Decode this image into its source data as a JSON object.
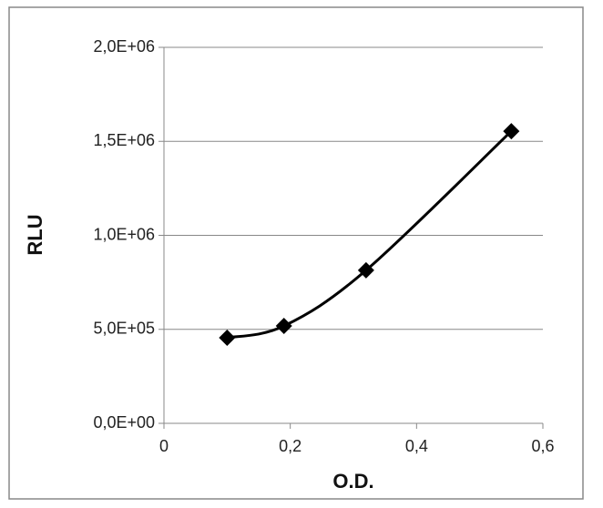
{
  "chart_data": {
    "type": "scatter",
    "x_label": "O.D.",
    "y_label": "RLU",
    "series": [
      {
        "color": "#000000",
        "x": [
          0.1,
          0.19,
          0.32,
          0.55
        ],
        "values": [
          455000,
          518000,
          814000,
          1554000
        ]
      }
    ],
    "xlim": [
      0,
      0.6
    ],
    "xticks": [
      0,
      {
        "value": 0.2,
        "label": "0,2"
      },
      {
        "value": 0.4,
        "label": "0,4"
      },
      {
        "value": 0.6,
        "label": "0,6"
      }
    ],
    "ylim": [
      0,
      2000000
    ],
    "yticks": [
      {
        "value": 0,
        "label": "0,0E+00"
      },
      {
        "value": 500000,
        "label": "5,0E+05"
      },
      {
        "value": 1000000,
        "label": "1,0E+06"
      },
      {
        "value": 1500000,
        "label": "1,5E+06"
      },
      {
        "value": 2000000,
        "label": "2,0E+06"
      }
    ],
    "grid": true,
    "smooth": true
  }
}
